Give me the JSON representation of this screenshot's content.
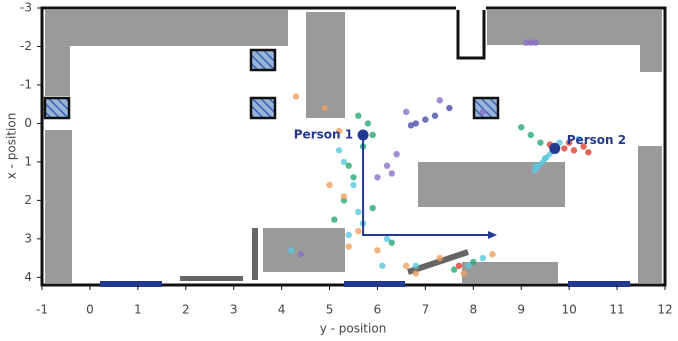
{
  "chart_data": {
    "type": "scatter",
    "xlabel": "y - position",
    "ylabel": "x - position",
    "xlim": [
      -1,
      12
    ],
    "xticks": [
      -1,
      0,
      1,
      2,
      3,
      4,
      5,
      6,
      7,
      8,
      9,
      10,
      11,
      12
    ],
    "ylim": [
      -3,
      4.2
    ],
    "yticks": [
      -3,
      -2,
      -1,
      0,
      1,
      2,
      3,
      4
    ],
    "y_inverted": true,
    "annotations": [
      {
        "text": "Person 1",
        "x": 5.7,
        "y": 0.3,
        "color": "#23388f"
      },
      {
        "text": "Person 2",
        "x": 9.7,
        "y": 0.65,
        "color": "#23388f"
      }
    ],
    "series": [
      {
        "color": "#8b6fc7",
        "x": [
          9.1,
          9.2,
          9.3,
          6.4,
          6.2,
          6.0,
          6.3,
          4.4,
          6.6,
          7.3,
          8.2
        ],
        "y": [
          -2.1,
          -2.1,
          -2.1,
          0.8,
          1.1,
          1.4,
          1.3,
          3.4,
          -0.3,
          -0.6,
          -0.3
        ]
      },
      {
        "color": "#4a4fa8",
        "x": [
          6.7,
          6.8,
          7.0,
          7.2,
          7.5
        ],
        "y": [
          0.05,
          0,
          -0.1,
          -0.2,
          -0.4
        ]
      },
      {
        "color": "#2aa876",
        "x": [
          5.6,
          5.8,
          5.9,
          5.7,
          5.5,
          5.3,
          5.1,
          5.9,
          9.0,
          9.2,
          9.4,
          6.3,
          7.6,
          8.0,
          5.4
        ],
        "y": [
          -0.2,
          0,
          0.3,
          0.6,
          1.4,
          2.0,
          2.5,
          2.2,
          0.1,
          0.3,
          0.5,
          3.1,
          3.8,
          3.6,
          1.1
        ]
      },
      {
        "color": "#f0a060",
        "x": [
          4.3,
          4.9,
          5.2,
          5.0,
          5.3,
          5.6,
          6.0,
          6.6,
          7.3,
          7.8,
          8.4,
          5.4,
          6.8
        ],
        "y": [
          -0.7,
          -0.4,
          0.2,
          1.6,
          1.9,
          2.8,
          3.3,
          3.7,
          3.5,
          3.9,
          3.4,
          3.2,
          3.9
        ]
      },
      {
        "color": "#5bc8e0",
        "x": [
          5.2,
          5.3,
          5.5,
          5.6,
          5.7,
          5.4,
          6.1,
          6.8,
          7.9,
          8.2,
          9.5,
          9.3,
          9.8,
          10.2,
          6.2,
          4.2
        ],
        "y": [
          0.7,
          1.0,
          1.6,
          2.3,
          2.6,
          2.9,
          3.7,
          3.7,
          3.7,
          3.5,
          0.9,
          1.1,
          0.5,
          0.4,
          3.0,
          3.3
        ]
      },
      {
        "color": "#e04030",
        "x": [
          9.9,
          10.1,
          10.3,
          10.4,
          9.6,
          10.0,
          7.7
        ],
        "y": [
          0.65,
          0.7,
          0.6,
          0.75,
          0.55,
          0.5,
          3.7
        ]
      }
    ]
  }
}
